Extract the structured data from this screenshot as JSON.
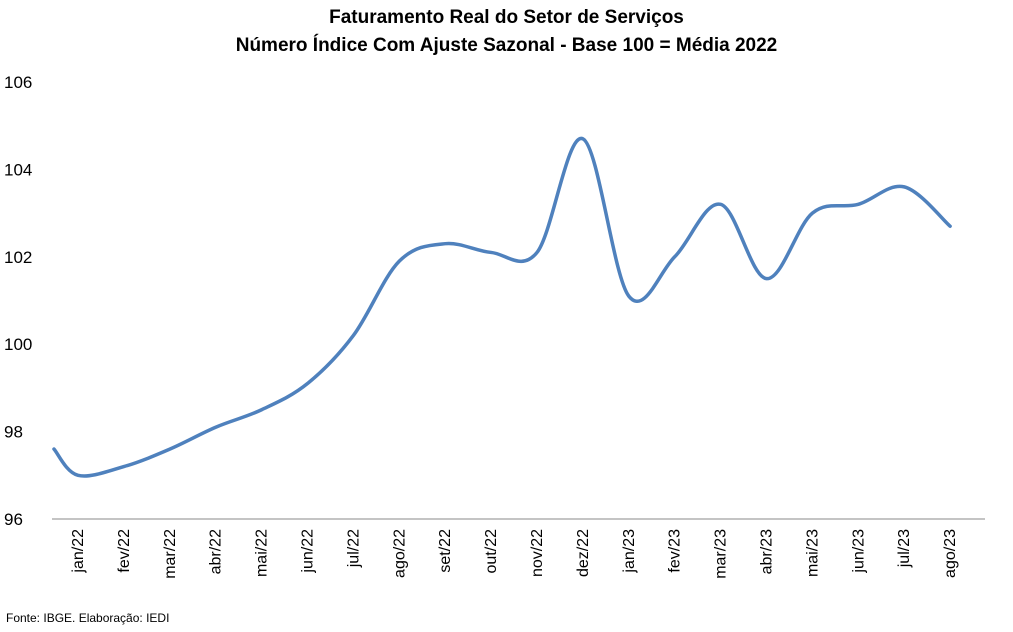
{
  "chart_data": {
    "type": "line",
    "title": "Faturamento Real do Setor de Serviços",
    "subtitle": "Número Índice Com Ajuste Sazonal - Base 100 = Média 2022",
    "xlabel": "",
    "ylabel": "",
    "ylim": [
      96,
      106
    ],
    "yticks": [
      "96",
      "98",
      "100",
      "102",
      "104",
      "106"
    ],
    "grid": false,
    "categories": [
      "jan/22",
      "fev/22",
      "mar/22",
      "abr/22",
      "mai/22",
      "jun/22",
      "jul/22",
      "ago/22",
      "set/22",
      "out/22",
      "nov/22",
      "dez/22",
      "jan/23",
      "fev/23",
      "mar/23",
      "abr/23",
      "mai/23",
      "jun/23",
      "jul/23",
      "ago/23"
    ],
    "series": [
      {
        "color": "#4f81bd",
        "values": [
          97.0,
          97.2,
          97.6,
          98.1,
          98.5,
          99.1,
          100.2,
          101.9,
          102.3,
          102.1,
          102.1,
          104.7,
          101.1,
          102.0,
          103.2,
          101.5,
          103.0,
          103.2,
          103.6,
          102.7
        ]
      }
    ]
  },
  "source": "Fonte: IBGE. Elaboração: IEDI"
}
